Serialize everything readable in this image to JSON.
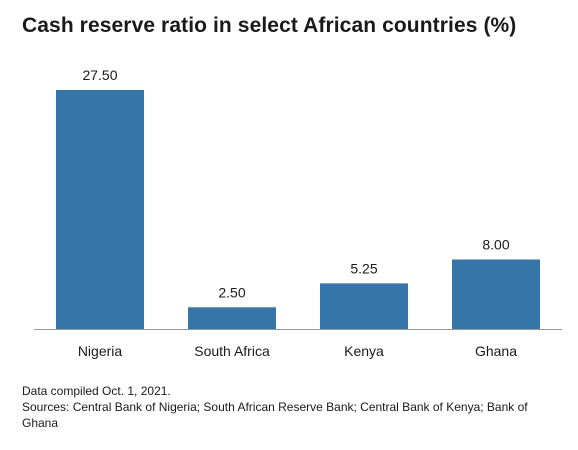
{
  "chart_data": {
    "type": "bar",
    "title": "Cash reserve ratio in select African countries (%)",
    "categories": [
      "Nigeria",
      "South Africa",
      "Kenya",
      "Ghana"
    ],
    "values": [
      27.5,
      2.5,
      5.25,
      8.0
    ],
    "data_labels": [
      "27.50",
      "2.50",
      "5.25",
      "8.00"
    ],
    "xlabel": "",
    "ylabel": "",
    "ylim": [
      0,
      27.5
    ],
    "grid": false,
    "bar_color": "#3575a8"
  },
  "notes": {
    "compiled": "Data compiled Oct. 1, 2021.",
    "sources": "Sources: Central Bank of Nigeria; South African Reserve Bank; Central Bank of Kenya; Bank of Ghana"
  }
}
